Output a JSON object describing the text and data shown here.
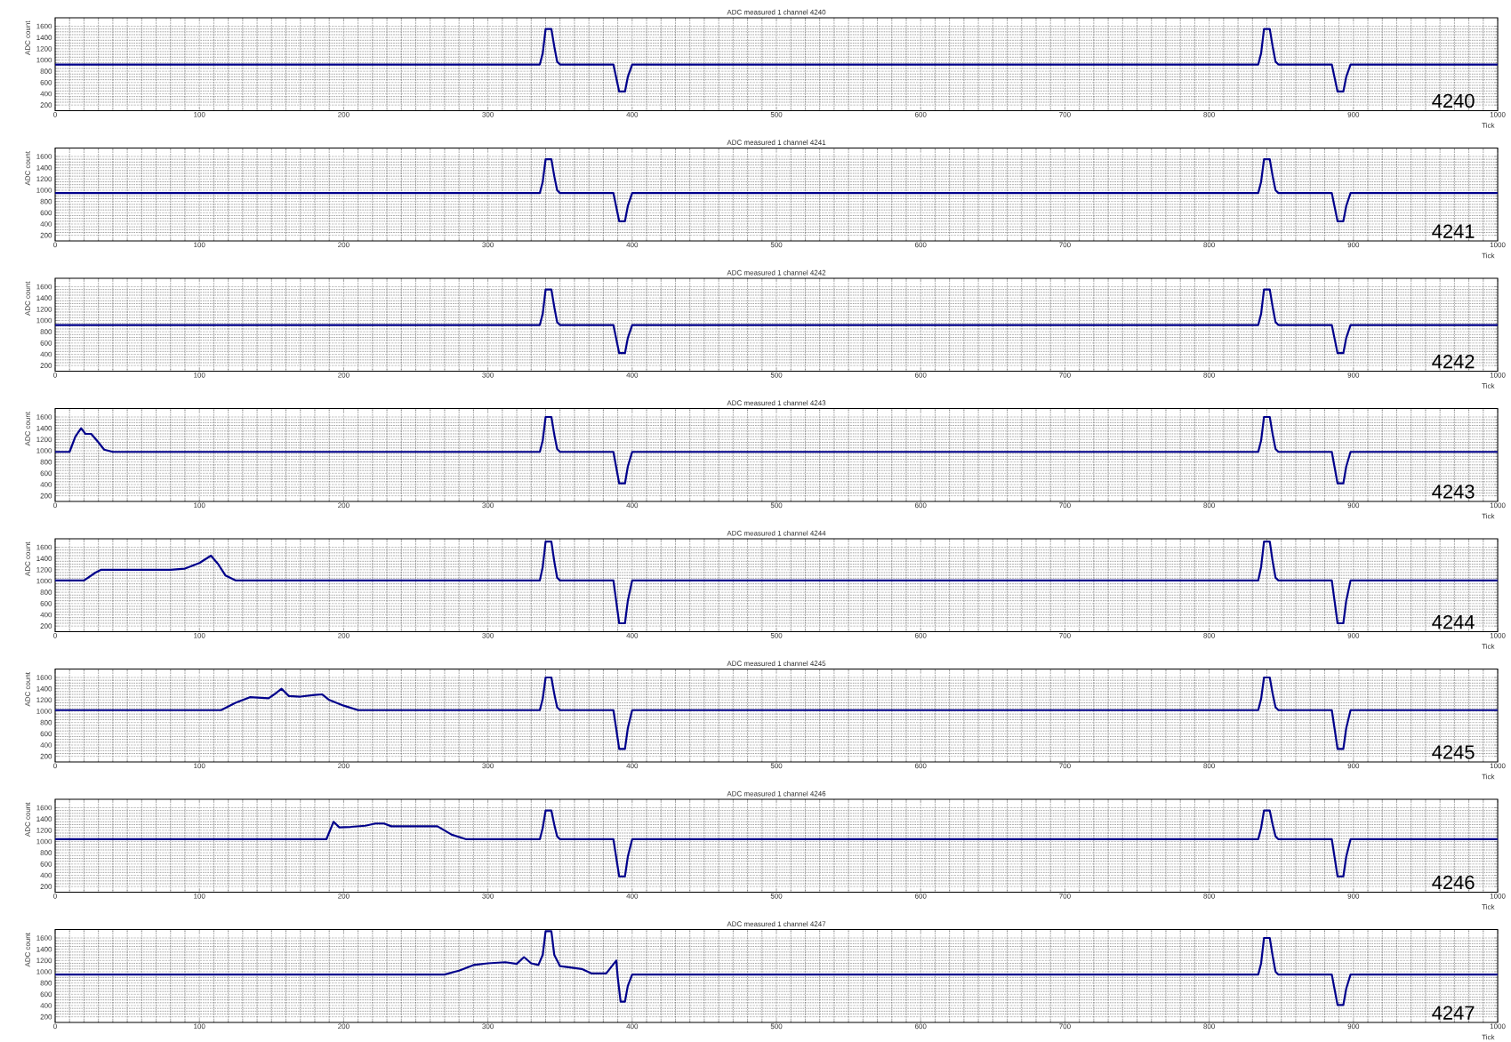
{
  "chart_data": [
    {
      "type": "line",
      "title": "ADC measured 1 channel 4240",
      "xlabel": "Tick",
      "ylabel": "ADC count",
      "xlim": [
        0,
        1000
      ],
      "ylim": [
        100,
        1750
      ],
      "xticks": [
        0,
        100,
        200,
        300,
        400,
        500,
        600,
        700,
        800,
        900,
        1000
      ],
      "yticks": [
        200,
        400,
        600,
        800,
        1000,
        1200,
        1400,
        1600
      ],
      "grid": true,
      "annotations": [
        "4240"
      ],
      "series": [
        {
          "color": "#00008b",
          "x": [
            0,
            336,
            338,
            340,
            344,
            346,
            348,
            350,
            387,
            389,
            391,
            395,
            397,
            400,
            834,
            836,
            838,
            842,
            844,
            846,
            848,
            885,
            887,
            889,
            893,
            895,
            898,
            1000
          ],
          "values": [
            920,
            920,
            1120,
            1550,
            1550,
            1240,
            970,
            920,
            920,
            680,
            440,
            440,
            700,
            920,
            920,
            1120,
            1550,
            1550,
            1240,
            970,
            920,
            920,
            680,
            440,
            440,
            700,
            920,
            920
          ]
        }
      ]
    },
    {
      "type": "line",
      "title": "ADC measured 1 channel 4241",
      "xlabel": "Tick",
      "ylabel": "ADC count",
      "xlim": [
        0,
        1000
      ],
      "ylim": [
        100,
        1750
      ],
      "xticks": [
        0,
        100,
        200,
        300,
        400,
        500,
        600,
        700,
        800,
        900,
        1000
      ],
      "yticks": [
        200,
        400,
        600,
        800,
        1000,
        1200,
        1400,
        1600
      ],
      "grid": true,
      "annotations": [
        "4241"
      ],
      "series": [
        {
          "color": "#00008b",
          "x": [
            0,
            336,
            338,
            340,
            344,
            346,
            348,
            350,
            387,
            389,
            391,
            395,
            397,
            400,
            834,
            836,
            838,
            842,
            844,
            846,
            848,
            885,
            887,
            889,
            893,
            895,
            898,
            1000
          ],
          "values": [
            950,
            950,
            1150,
            1550,
            1550,
            1250,
            1000,
            950,
            950,
            700,
            450,
            450,
            720,
            950,
            950,
            1150,
            1550,
            1550,
            1250,
            1000,
            950,
            950,
            700,
            450,
            450,
            720,
            950,
            950
          ]
        }
      ]
    },
    {
      "type": "line",
      "title": "ADC measured 1 channel 4242",
      "xlabel": "Tick",
      "ylabel": "ADC count",
      "xlim": [
        0,
        1000
      ],
      "ylim": [
        100,
        1750
      ],
      "xticks": [
        0,
        100,
        200,
        300,
        400,
        500,
        600,
        700,
        800,
        900,
        1000
      ],
      "yticks": [
        200,
        400,
        600,
        800,
        1000,
        1200,
        1400,
        1600
      ],
      "grid": true,
      "annotations": [
        "4242"
      ],
      "series": [
        {
          "color": "#00008b",
          "x": [
            0,
            336,
            338,
            340,
            344,
            346,
            348,
            350,
            387,
            389,
            391,
            395,
            397,
            400,
            834,
            836,
            838,
            842,
            844,
            846,
            848,
            885,
            887,
            889,
            893,
            895,
            898,
            1000
          ],
          "values": [
            920,
            920,
            1120,
            1550,
            1550,
            1240,
            970,
            920,
            920,
            670,
            420,
            420,
            690,
            920,
            920,
            1120,
            1550,
            1550,
            1240,
            970,
            920,
            920,
            670,
            420,
            420,
            690,
            920,
            920
          ]
        }
      ]
    },
    {
      "type": "line",
      "title": "ADC measured 1 channel 4243",
      "xlabel": "Tick",
      "ylabel": "ADC count",
      "xlim": [
        0,
        1000
      ],
      "ylim": [
        100,
        1750
      ],
      "xticks": [
        0,
        100,
        200,
        300,
        400,
        500,
        600,
        700,
        800,
        900,
        1000
      ],
      "yticks": [
        200,
        400,
        600,
        800,
        1000,
        1200,
        1400,
        1600
      ],
      "grid": true,
      "annotations": [
        "4243"
      ],
      "series": [
        {
          "color": "#00008b",
          "x": [
            0,
            10,
            14,
            18,
            21,
            25,
            30,
            34,
            40,
            336,
            338,
            340,
            344,
            346,
            348,
            350,
            387,
            389,
            391,
            395,
            397,
            400,
            834,
            836,
            838,
            842,
            844,
            846,
            848,
            885,
            887,
            889,
            893,
            895,
            898,
            1000
          ],
          "values": [
            980,
            980,
            1250,
            1400,
            1300,
            1300,
            1150,
            1020,
            980,
            980,
            1180,
            1600,
            1600,
            1290,
            1030,
            980,
            980,
            700,
            420,
            420,
            720,
            980,
            980,
            1180,
            1600,
            1600,
            1290,
            1030,
            980,
            980,
            700,
            420,
            420,
            720,
            980,
            980
          ]
        }
      ]
    },
    {
      "type": "line",
      "title": "ADC measured 1 channel 4244",
      "xlabel": "Tick",
      "ylabel": "ADC count",
      "xlim": [
        0,
        1000
      ],
      "ylim": [
        100,
        1750
      ],
      "xticks": [
        0,
        100,
        200,
        300,
        400,
        500,
        600,
        700,
        800,
        900,
        1000
      ],
      "yticks": [
        200,
        400,
        600,
        800,
        1000,
        1200,
        1400,
        1600
      ],
      "grid": true,
      "annotations": [
        "4244"
      ],
      "series": [
        {
          "color": "#00008b",
          "x": [
            0,
            20,
            28,
            32,
            80,
            90,
            100,
            108,
            113,
            118,
            125,
            336,
            338,
            340,
            344,
            346,
            348,
            350,
            387,
            389,
            391,
            395,
            397,
            400,
            834,
            836,
            838,
            842,
            844,
            846,
            848,
            885,
            887,
            889,
            893,
            895,
            898,
            1000
          ],
          "values": [
            1010,
            1010,
            1150,
            1200,
            1200,
            1220,
            1320,
            1450,
            1300,
            1100,
            1010,
            1010,
            1250,
            1700,
            1700,
            1350,
            1060,
            1010,
            1010,
            630,
            250,
            250,
            650,
            1010,
            1010,
            1250,
            1700,
            1700,
            1350,
            1060,
            1010,
            1010,
            630,
            250,
            250,
            650,
            1010,
            1010
          ]
        }
      ]
    },
    {
      "type": "line",
      "title": "ADC measured 1 channel 4245",
      "xlabel": "Tick",
      "ylabel": "ADC count",
      "xlim": [
        0,
        1000
      ],
      "ylim": [
        100,
        1750
      ],
      "xticks": [
        0,
        100,
        200,
        300,
        400,
        500,
        600,
        700,
        800,
        900,
        1000
      ],
      "yticks": [
        200,
        400,
        600,
        800,
        1000,
        1200,
        1400,
        1600
      ],
      "grid": true,
      "annotations": [
        "4245"
      ],
      "series": [
        {
          "color": "#00008b",
          "x": [
            0,
            115,
            125,
            135,
            148,
            153,
            157,
            162,
            170,
            180,
            185,
            190,
            200,
            210,
            336,
            338,
            340,
            344,
            346,
            348,
            350,
            387,
            389,
            391,
            395,
            397,
            400,
            834,
            836,
            838,
            842,
            844,
            846,
            848,
            885,
            887,
            889,
            893,
            895,
            898,
            1000
          ],
          "values": [
            1020,
            1020,
            1150,
            1250,
            1230,
            1320,
            1400,
            1270,
            1260,
            1290,
            1300,
            1200,
            1100,
            1020,
            1020,
            1220,
            1600,
            1600,
            1310,
            1070,
            1020,
            1020,
            680,
            330,
            330,
            700,
            1020,
            1020,
            1220,
            1600,
            1600,
            1310,
            1070,
            1020,
            1020,
            680,
            330,
            330,
            700,
            1020,
            1020
          ]
        }
      ]
    },
    {
      "type": "line",
      "title": "ADC measured 1 channel 4246",
      "xlabel": "Tick",
      "ylabel": "ADC count",
      "xlim": [
        0,
        1000
      ],
      "ylim": [
        100,
        1750
      ],
      "xticks": [
        0,
        100,
        200,
        300,
        400,
        500,
        600,
        700,
        800,
        900,
        1000
      ],
      "yticks": [
        200,
        400,
        600,
        800,
        1000,
        1200,
        1400,
        1600
      ],
      "grid": true,
      "annotations": [
        "4246"
      ],
      "series": [
        {
          "color": "#00008b",
          "x": [
            0,
            188,
            193,
            197,
            205,
            215,
            222,
            228,
            233,
            240,
            265,
            275,
            285,
            336,
            338,
            340,
            344,
            346,
            348,
            350,
            387,
            389,
            391,
            395,
            397,
            400,
            834,
            836,
            838,
            842,
            844,
            846,
            848,
            885,
            887,
            889,
            893,
            895,
            898,
            1000
          ],
          "values": [
            1040,
            1040,
            1350,
            1250,
            1260,
            1280,
            1320,
            1320,
            1270,
            1270,
            1270,
            1120,
            1040,
            1040,
            1240,
            1550,
            1550,
            1300,
            1090,
            1040,
            1040,
            710,
            380,
            380,
            730,
            1040,
            1040,
            1240,
            1550,
            1550,
            1300,
            1090,
            1040,
            1040,
            710,
            380,
            380,
            730,
            1040,
            1040
          ]
        }
      ]
    },
    {
      "type": "line",
      "title": "ADC measured 1 channel 4247",
      "xlabel": "Tick",
      "ylabel": "ADC count",
      "xlim": [
        0,
        1000
      ],
      "ylim": [
        100,
        1750
      ],
      "xticks": [
        0,
        100,
        200,
        300,
        400,
        500,
        600,
        700,
        800,
        900,
        1000
      ],
      "yticks": [
        200,
        400,
        600,
        800,
        1000,
        1200,
        1400,
        1600
      ],
      "grid": true,
      "annotations": [
        "4247"
      ],
      "series": [
        {
          "color": "#00008b",
          "x": [
            0,
            270,
            280,
            290,
            300,
            312,
            320,
            325,
            330,
            335,
            338,
            340,
            344,
            346,
            350,
            365,
            372,
            382,
            389,
            390,
            392,
            395,
            397,
            400,
            834,
            836,
            838,
            842,
            844,
            846,
            848,
            885,
            887,
            889,
            893,
            895,
            898,
            1000
          ],
          "values": [
            950,
            950,
            1020,
            1120,
            1150,
            1170,
            1140,
            1260,
            1150,
            1120,
            1300,
            1720,
            1720,
            1300,
            1100,
            1050,
            970,
            970,
            1200,
            900,
            470,
            470,
            750,
            950,
            950,
            1150,
            1600,
            1600,
            1280,
            1000,
            950,
            950,
            680,
            410,
            410,
            700,
            950,
            950
          ]
        }
      ]
    }
  ]
}
